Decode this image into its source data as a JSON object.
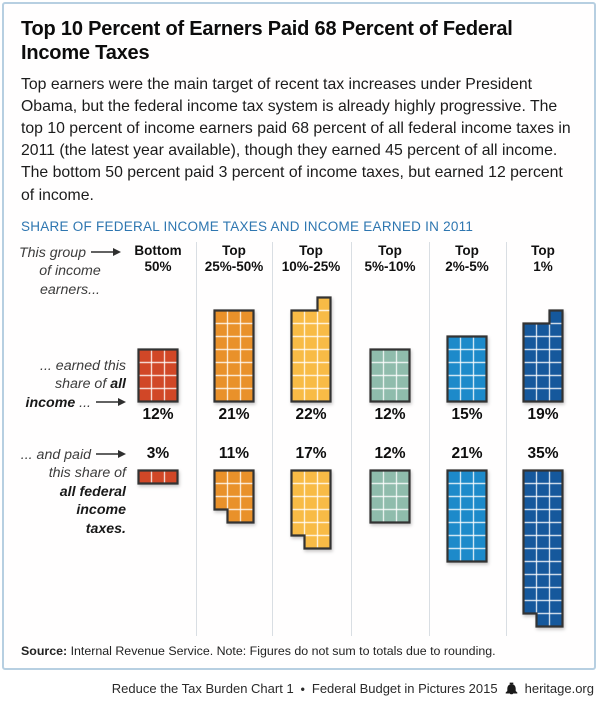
{
  "title": "Top 10 Percent of Earners Paid 68 Percent of Federal Income Taxes",
  "intro": "Top earners were the main target of recent tax increases under President Obama, but the federal income tax system is already highly progressive. The top 10 percent of income earners paid 68 percent of all federal income taxes in 2011 (the latest year available), though they earned 45 percent of all income. The bottom 50 percent paid 3 percent of income taxes, but earned 12 percent of income.",
  "chart_heading": "SHARE OF FEDERAL INCOME TAXES AND INCOME EARNED IN 2011",
  "colors": {
    "red": "#d14727",
    "orange": "#e9912a",
    "amber": "#f8bb46",
    "sage": "#8fbcac",
    "blue": "#1d8aca",
    "dark_blue": "#15589c",
    "heading_blue": "#2e76b0",
    "frame_border": "#b7cfe1",
    "block_outline": "#333333"
  },
  "labels": {
    "group": {
      "lines": [
        {
          "runs": [
            {
              "t": "This group"
            },
            {
              "arrow": true
            }
          ]
        },
        {
          "runs": [
            {
              "t": "of income"
            }
          ]
        },
        {
          "runs": [
            {
              "t": "earners..."
            }
          ]
        }
      ]
    },
    "income": {
      "lines": [
        {
          "runs": [
            {
              "t": "... earned this"
            }
          ]
        },
        {
          "runs": [
            {
              "t": "share of "
            },
            {
              "t": "all",
              "b": true
            }
          ]
        },
        {
          "runs": [
            {
              "t": "income",
              "b": true
            },
            {
              "t": " ..."
            },
            {
              "arrow": true
            }
          ]
        }
      ]
    },
    "taxes": {
      "lines": [
        {
          "runs": [
            {
              "t": "... and paid"
            },
            {
              "arrow": true
            }
          ]
        },
        {
          "runs": [
            {
              "t": "this share of"
            }
          ]
        },
        {
          "runs": [
            {
              "t": "all federal",
              "b": true
            }
          ]
        },
        {
          "runs": [
            {
              "t": "income",
              "b": true
            }
          ]
        },
        {
          "runs": [
            {
              "t": "taxes.",
              "b": true
            }
          ]
        }
      ]
    }
  },
  "columns": [
    {
      "header": [
        "Bottom",
        "50%"
      ],
      "color_key": "red",
      "income": {
        "pct": "12%",
        "rows": 4,
        "shape": "rect"
      },
      "taxes": {
        "pct": "3%",
        "rows": 1,
        "shape": "rect"
      }
    },
    {
      "header": [
        "Top",
        "25%-50%"
      ],
      "color_key": "orange",
      "income": {
        "pct": "21%",
        "rows": 7,
        "shape": "rect"
      },
      "taxes": {
        "pct": "11%",
        "rows": 3,
        "shape": "notch"
      }
    },
    {
      "header": [
        "Top",
        "10%-25%"
      ],
      "color_key": "amber",
      "income": {
        "pct": "22%",
        "rows": 7,
        "shape": "cap"
      },
      "taxes": {
        "pct": "17%",
        "rows": 5,
        "shape": "notch"
      }
    },
    {
      "header": [
        "Top",
        "5%-10%"
      ],
      "color_key": "sage",
      "income": {
        "pct": "12%",
        "rows": 4,
        "shape": "rect"
      },
      "taxes": {
        "pct": "12%",
        "rows": 4,
        "shape": "rect"
      }
    },
    {
      "header": [
        "Top",
        "2%-5%"
      ],
      "color_key": "blue",
      "income": {
        "pct": "15%",
        "rows": 5,
        "shape": "rect"
      },
      "taxes": {
        "pct": "21%",
        "rows": 7,
        "shape": "rect"
      }
    },
    {
      "header": [
        "Top",
        "1%"
      ],
      "color_key": "dark_blue",
      "income": {
        "pct": "19%",
        "rows": 6,
        "shape": "cap"
      },
      "taxes": {
        "pct": "35%",
        "rows": 11,
        "shape": "notch"
      }
    }
  ],
  "chart_data": {
    "type": "bar",
    "style": "unit-block waffle pictogram, 1 square = 1 percentage point",
    "title": "SHARE OF FEDERAL INCOME TAXES AND INCOME EARNED IN 2011",
    "categories": [
      "Bottom 50%",
      "Top 25%-50%",
      "Top 10%-25%",
      "Top 5%-10%",
      "Top 2%-5%",
      "Top 1%"
    ],
    "series": [
      {
        "name": "... earned this share of all income ...",
        "values": [
          12,
          21,
          22,
          12,
          15,
          19
        ]
      },
      {
        "name": "... and paid this share of all federal income taxes.",
        "values": [
          3,
          11,
          17,
          12,
          21,
          35
        ]
      }
    ],
    "unit": "percent",
    "legend_position": "left-annotations",
    "grid": false
  },
  "source": {
    "label": "Source:",
    "text": " Internal Revenue Service. Note: Figures do not sum to totals due to rounding."
  },
  "footer": {
    "chart_ref": "Reduce the Tax Burden Chart 1",
    "bullet": "•",
    "publication": "Federal Budget in Pictures 2015",
    "icon": "liberty-bell-icon",
    "site": "heritage.org"
  }
}
